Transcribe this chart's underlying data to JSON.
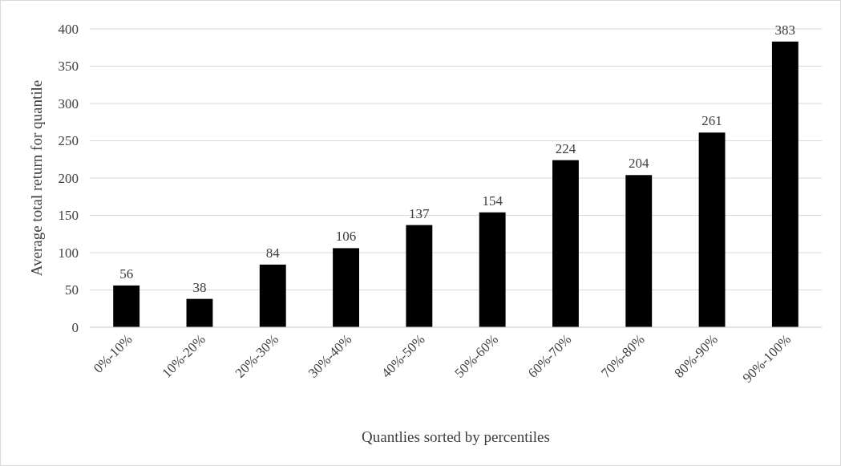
{
  "chart_data": {
    "type": "bar",
    "xlabel": "Quantlies sorted by percentiles",
    "ylabel": "Average total return for quantile",
    "categories": [
      "0%-10%",
      "10%-20%",
      "20%-30%",
      "30%-40%",
      "40%-50%",
      "50%-60%",
      "60%-70%",
      "70%-80%",
      "80%-90%",
      "90%-100%"
    ],
    "values": [
      56,
      38,
      84,
      106,
      137,
      154,
      224,
      204,
      261,
      383
    ],
    "color": "#000000",
    "ylim": [
      0,
      400
    ],
    "yticks": [
      0,
      50,
      100,
      150,
      200,
      250,
      300,
      350,
      400
    ],
    "grid": "y",
    "data_labels": true
  }
}
